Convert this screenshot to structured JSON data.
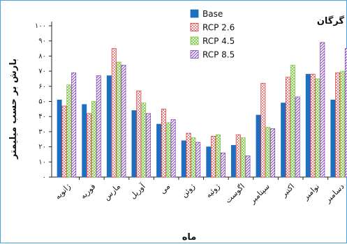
{
  "chart_data": {
    "type": "bar",
    "title": "گرگان",
    "xlabel": "ماه",
    "ylabel": "بارش بر حسب میلیمتر",
    "ylim": [
      0,
      100
    ],
    "yticks": [
      "۰",
      "۱۰",
      "۲۰",
      "۳۰",
      "۴۰",
      "۵۰",
      "۶۰",
      "۷۰",
      "۸۰",
      "۹۰",
      "۱۰۰"
    ],
    "categories": [
      "ژانویه",
      "فوریه",
      "مارس",
      "آوریل",
      "می",
      "ژوئن",
      "ژوئیه",
      "اگوست",
      "سپتامبر",
      "اکتبر",
      "نوامبر",
      "دسامبر"
    ],
    "legend_position": "top-center",
    "series": [
      {
        "name": "Base",
        "color": "#1f6fc0",
        "pattern": "solid",
        "values": [
          51,
          48,
          67,
          44,
          35,
          24,
          20,
          21,
          41,
          49,
          68,
          51
        ]
      },
      {
        "name": "RCP 2.6",
        "color": "#e03030",
        "pattern": "dots",
        "values": [
          47,
          42,
          85,
          57,
          45,
          29,
          27,
          28,
          62,
          66,
          68,
          69
        ]
      },
      {
        "name": "RCP 4.5",
        "color": "#7ec242",
        "pattern": "cross",
        "values": [
          61,
          50,
          76,
          49,
          36,
          26,
          28,
          26,
          33,
          74,
          65,
          70
        ]
      },
      {
        "name": "RCP 8.5",
        "color": "#7e3fb5",
        "pattern": "diag",
        "values": [
          69,
          67,
          74,
          42,
          38,
          23,
          16,
          14,
          32,
          53,
          89,
          85
        ]
      }
    ]
  }
}
